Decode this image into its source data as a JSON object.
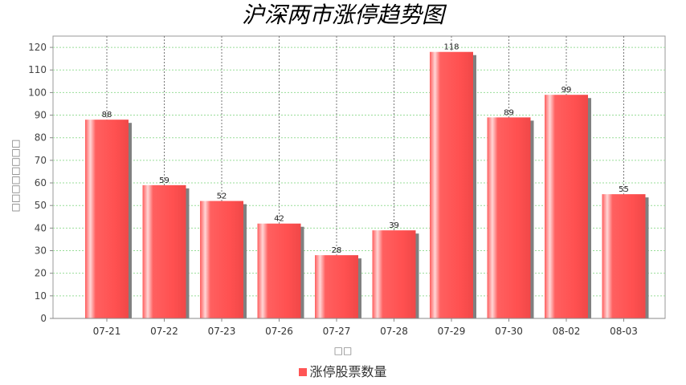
{
  "chart_data": {
    "type": "bar",
    "title": "沪深两市涨停趋势图",
    "xlabel": "□□",
    "ylabel": "□□□□□□□□",
    "categories": [
      "07-21",
      "07-22",
      "07-23",
      "07-26",
      "07-27",
      "07-28",
      "07-29",
      "07-30",
      "08-02",
      "08-03"
    ],
    "series": [
      {
        "name": "涨停股票数量",
        "values": [
          88,
          59,
          52,
          42,
          28,
          39,
          118,
          89,
          99,
          55
        ]
      }
    ],
    "ylim": [
      0,
      125
    ],
    "yticks": [
      0,
      10,
      20,
      30,
      40,
      50,
      60,
      70,
      80,
      90,
      100,
      110,
      120
    ],
    "grid": true,
    "legend": "bottom",
    "colors": {
      "bar": "#ff5555",
      "highlight": "#ffd0d0",
      "shadow": "#808080",
      "grid_h": "#99dd99",
      "grid_v": "#777777"
    }
  }
}
